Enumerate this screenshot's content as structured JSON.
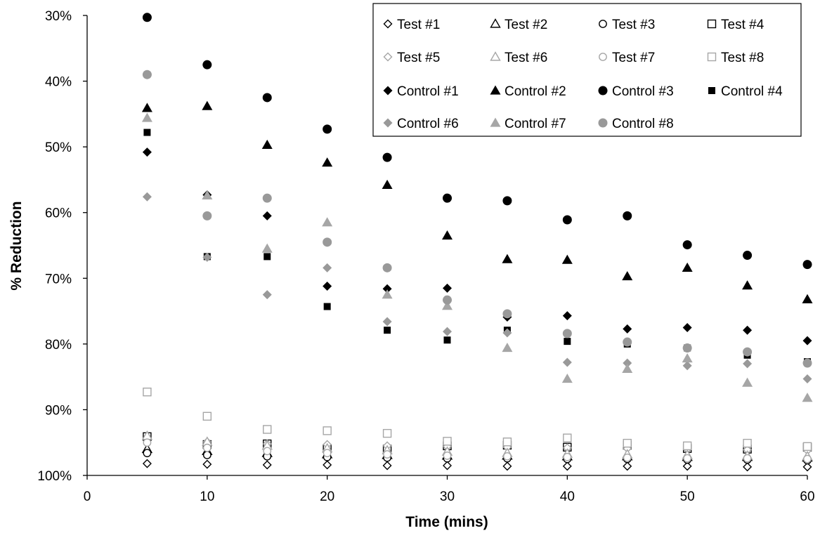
{
  "chart_data": {
    "type": "scatter",
    "title": "",
    "xlabel": "Time (mins)",
    "ylabel": "% Reduction",
    "xlim": [
      0,
      60
    ],
    "ylim": [
      30,
      100
    ],
    "y_axis_inverted": true,
    "x_ticks": [
      0,
      10,
      20,
      30,
      40,
      50,
      60
    ],
    "x_tick_labels": [
      "0",
      "10",
      "20",
      "30",
      "40",
      "50",
      "60"
    ],
    "y_ticks": [
      30,
      40,
      50,
      60,
      70,
      80,
      90,
      100
    ],
    "y_tick_labels": [
      "30%",
      "40%",
      "50%",
      "60%",
      "70%",
      "80%",
      "90%",
      "100%"
    ],
    "grid": false,
    "legend_position": "top-right",
    "x": [
      5,
      10,
      15,
      20,
      25,
      30,
      35,
      40,
      45,
      50,
      55,
      60
    ],
    "series": [
      {
        "name": "Test #1",
        "marker": "diamond",
        "filled": false,
        "color": "#000000",
        "values": [
          98.2,
          98.3,
          98.4,
          98.4,
          98.5,
          98.5,
          98.6,
          98.6,
          98.6,
          98.6,
          98.7,
          98.7
        ]
      },
      {
        "name": "Test #2",
        "marker": "triangle",
        "filled": false,
        "color": "#000000",
        "values": [
          96.0,
          96.3,
          96.6,
          96.8,
          96.9,
          97.0,
          97.0,
          97.1,
          97.1,
          97.2,
          97.2,
          97.3
        ]
      },
      {
        "name": "Test #3",
        "marker": "circle",
        "filled": false,
        "color": "#000000",
        "values": [
          96.6,
          96.9,
          97.1,
          97.2,
          97.3,
          97.4,
          97.4,
          97.5,
          97.5,
          97.6,
          97.6,
          97.7
        ]
      },
      {
        "name": "Test #4",
        "marker": "square",
        "filled": false,
        "color": "#000000",
        "values": [
          94.1,
          95.3,
          95.2,
          95.9,
          96.0,
          95.5,
          95.4,
          95.7,
          95.4,
          95.9,
          96.0,
          95.7
        ]
      },
      {
        "name": "Test #5",
        "marker": "diamond",
        "filled": false,
        "color": "#a6a6a6",
        "values": [
          94.4,
          94.9,
          95.2,
          95.3,
          95.5,
          95.6,
          95.7,
          95.8,
          95.9,
          96.0,
          96.1,
          96.2
        ]
      },
      {
        "name": "Test #6",
        "marker": "triangle",
        "filled": false,
        "color": "#a6a6a6",
        "values": [
          94.0,
          94.9,
          95.5,
          95.9,
          96.2,
          96.4,
          96.6,
          96.7,
          96.8,
          96.9,
          97.0,
          97.1
        ]
      },
      {
        "name": "Test #7",
        "marker": "circle",
        "filled": false,
        "color": "#a6a6a6",
        "values": [
          95.0,
          95.8,
          96.3,
          96.6,
          96.8,
          97.0,
          97.1,
          97.2,
          97.3,
          97.4,
          97.4,
          97.5
        ]
      },
      {
        "name": "Test #8",
        "marker": "square",
        "filled": false,
        "color": "#a6a6a6",
        "values": [
          87.3,
          91.0,
          93.0,
          93.2,
          93.6,
          94.8,
          94.9,
          94.3,
          95.1,
          95.5,
          95.1,
          95.6
        ]
      },
      {
        "name": "Control #1",
        "marker": "diamond",
        "filled": true,
        "color": "#000000",
        "values": [
          50.8,
          57.3,
          60.5,
          71.2,
          71.6,
          71.5,
          75.9,
          75.7,
          77.7,
          77.5,
          77.9,
          79.5
        ]
      },
      {
        "name": "Control #2",
        "marker": "triangle",
        "filled": true,
        "color": "#000000",
        "values": [
          44.1,
          43.8,
          49.7,
          52.4,
          55.8,
          63.5,
          67.1,
          67.2,
          69.7,
          68.4,
          71.1,
          73.2
        ]
      },
      {
        "name": "Control #3",
        "marker": "circle",
        "filled": true,
        "color": "#000000",
        "values": [
          30.3,
          37.5,
          42.5,
          47.3,
          51.6,
          57.8,
          58.2,
          61.1,
          60.5,
          64.9,
          66.5,
          67.9
        ]
      },
      {
        "name": "Control #4",
        "marker": "square",
        "filled": true,
        "color": "#000000",
        "values": [
          47.8,
          66.7,
          66.7,
          74.3,
          77.9,
          79.4,
          77.9,
          79.6,
          80.0,
          80.6,
          81.7,
          82.7
        ]
      },
      {
        "name": "Control #6",
        "marker": "diamond",
        "filled": true,
        "color": "#999999",
        "values": [
          57.6,
          66.8,
          72.5,
          68.4,
          76.6,
          78.1,
          78.3,
          82.8,
          82.9,
          83.3,
          83.0,
          85.3
        ]
      },
      {
        "name": "Control #7",
        "marker": "triangle",
        "filled": true,
        "color": "#a6a6a6",
        "values": [
          45.6,
          57.4,
          65.5,
          61.5,
          72.5,
          74.2,
          80.6,
          85.3,
          83.8,
          82.2,
          85.9,
          88.2
        ]
      },
      {
        "name": "Control #8",
        "marker": "circle",
        "filled": true,
        "color": "#999999",
        "values": [
          39.0,
          60.5,
          57.8,
          64.5,
          68.4,
          73.3,
          75.4,
          78.4,
          79.7,
          80.6,
          81.2,
          82.9
        ]
      }
    ]
  }
}
